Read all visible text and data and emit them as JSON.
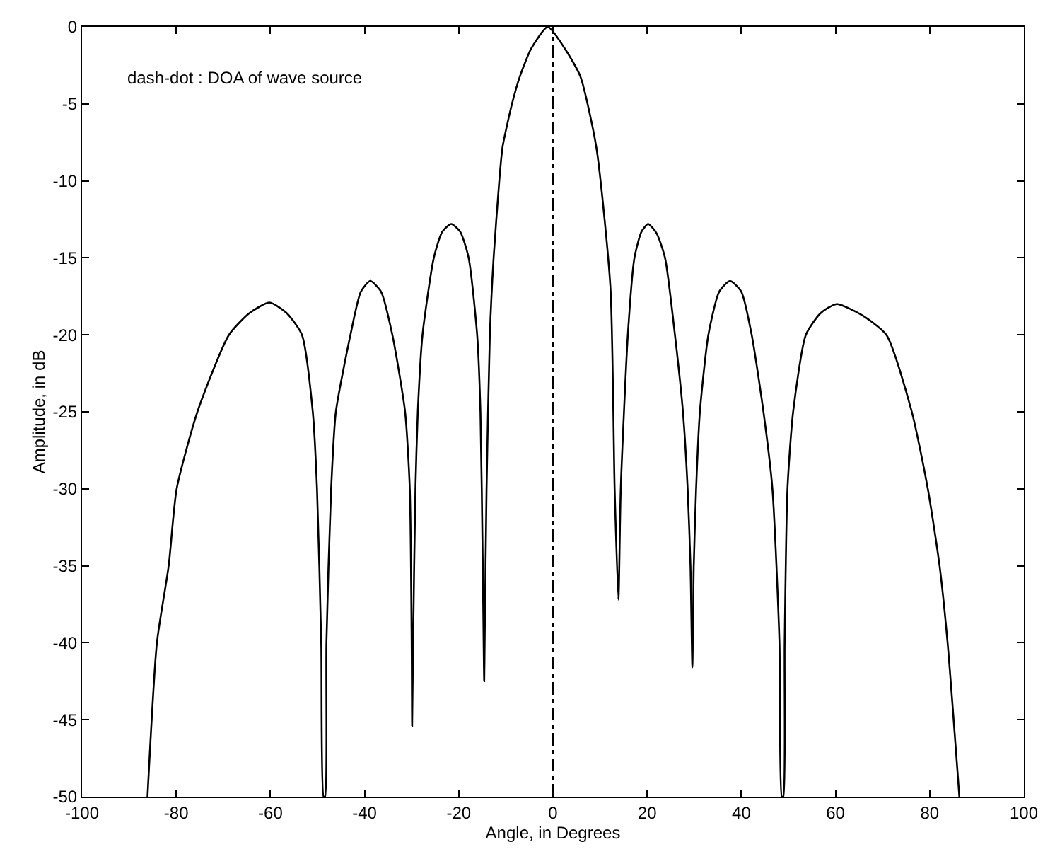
{
  "chart_data": {
    "type": "line",
    "xlabel": "Angle, in Degrees",
    "ylabel": "Amplitude, in dB",
    "annotations": [
      "dash-dot : DOA of wave source"
    ],
    "xlim": [
      -100,
      100
    ],
    "xticks": [
      -100,
      -80,
      -60,
      -40,
      -20,
      0,
      20,
      40,
      60,
      80,
      100
    ],
    "ylim": [
      -50,
      0
    ],
    "yticks": [
      -50,
      -45,
      -40,
      -35,
      -30,
      -25,
      -20,
      -15,
      -10,
      -5,
      0
    ],
    "grid": false,
    "marker": "none",
    "line_style": "solid",
    "ref_lines": [
      {
        "axis": "x",
        "value": 0,
        "label": null,
        "color": "#000000",
        "line_style": "dashdot"
      }
    ],
    "series": [
      {
        "color": "#000000",
        "x": [
          -86.1,
          -84.1,
          -81.6,
          -79.9,
          -75.5,
          -68.8,
          -64.5,
          -60.2,
          -56.5,
          -53.3,
          -51.0,
          -50.1,
          -49.2,
          -48.7,
          -48.4,
          -48.1,
          -47.1,
          -46.1,
          -43,
          -40.8,
          -38.8,
          -36.5,
          -34.1,
          -31.4,
          -30.4,
          -30.0,
          -29.9,
          -29.7,
          -29.2,
          -28.7,
          -27.7,
          -25.3,
          -23.5,
          -21.6,
          -19.7,
          -17.9,
          -16.1,
          -15.4,
          -14.9,
          -14.6,
          -14.5,
          -14.1,
          -13.4,
          -12.6,
          -11.4,
          -10.7,
          -8.7,
          -7.0,
          -4.6,
          -1.1,
          2.5,
          5.8,
          9.2,
          12.2,
          13.1,
          13.9,
          14.4,
          15.9,
          17.3,
          18.8,
          20.2,
          22.0,
          23.8,
          25.9,
          27.6,
          28.6,
          29.2,
          29.6,
          29.9,
          30.4,
          31.2,
          33.0,
          35.3,
          37.6,
          40.0,
          42.2,
          44.7,
          46.6,
          48.1,
          48.6,
          48.9,
          49.2,
          49.8,
          51.0,
          53.7,
          56.8,
          60.2,
          65.5,
          70.8,
          76.2,
          79.6,
          82.1,
          83.8,
          86.3
        ],
        "values": [
          -50,
          -40,
          -35,
          -30,
          -25,
          -20,
          -18.6,
          -17.9,
          -18.6,
          -20,
          -25,
          -30,
          -40,
          -50,
          -50,
          -40,
          -30,
          -25,
          -20,
          -17.2,
          -16.5,
          -17.2,
          -20,
          -25,
          -30,
          -40,
          -45.4,
          -40,
          -30,
          -25,
          -20,
          -15,
          -13.3,
          -12.8,
          -13.3,
          -15,
          -20,
          -25,
          -35,
          -42.5,
          -40,
          -30,
          -20,
          -15,
          -10,
          -7.8,
          -5,
          -3.2,
          -1.4,
          0,
          -1.4,
          -3.2,
          -7.8,
          -16.9,
          -30,
          -37.2,
          -30,
          -20,
          -15,
          -13.3,
          -12.8,
          -13.4,
          -15,
          -20,
          -25,
          -30,
          -35,
          -41.6,
          -35,
          -30,
          -25,
          -20,
          -17.2,
          -16.5,
          -17.2,
          -20,
          -25,
          -30,
          -40,
          -50,
          -50,
          -40,
          -30,
          -25,
          -20,
          -18.6,
          -18.0,
          -18.7,
          -20,
          -25,
          -30,
          -35,
          -40,
          -50
        ]
      }
    ]
  }
}
